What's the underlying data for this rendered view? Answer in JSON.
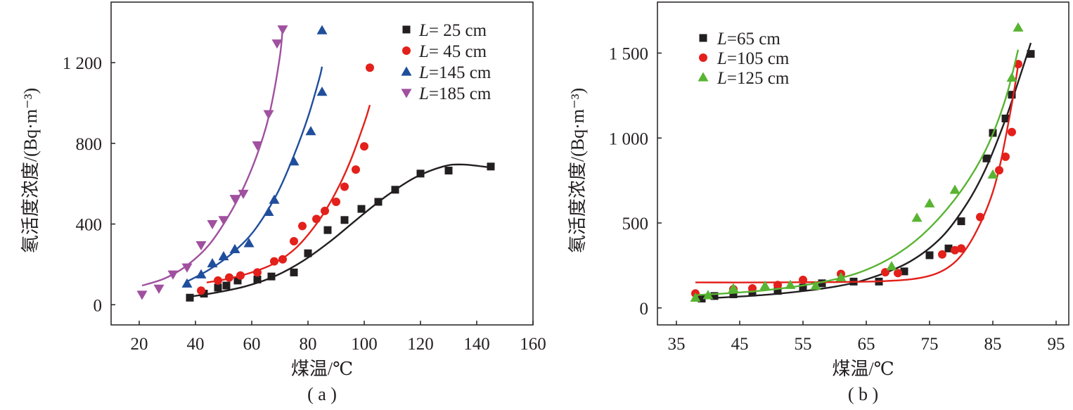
{
  "chart_data": [
    {
      "panel": "a",
      "type": "scatter",
      "caption": "( a )",
      "xlabel": "煤温/℃",
      "ylabel": "氡活度浓度/(Bq·m⁻³)",
      "xlim": [
        10,
        160
      ],
      "ylim": [
        -100,
        1500
      ],
      "xticks": [
        "20",
        "40",
        "60",
        "80",
        "100",
        "120",
        "140",
        "160"
      ],
      "xtick_values": [
        20,
        40,
        60,
        80,
        100,
        120,
        140,
        160
      ],
      "yticks": [
        "0",
        "400",
        "800",
        "1 200"
      ],
      "ytick_values": [
        0,
        400,
        800,
        1200
      ],
      "legend": {
        "position": "top-right"
      },
      "series": [
        {
          "name": "L= 25 cm",
          "color": "#231f20",
          "marker": "square",
          "x": [
            38,
            43,
            48,
            51,
            55,
            62,
            67,
            75,
            80,
            87,
            93,
            99,
            105,
            111,
            120,
            130,
            145
          ],
          "y": [
            35,
            55,
            85,
            95,
            120,
            125,
            140,
            160,
            255,
            370,
            420,
            475,
            510,
            570,
            650,
            665,
            685
          ],
          "fit": {
            "x": [
              38,
              48,
              58,
              68,
              78,
              88,
              98,
              108,
              118,
              128,
              135,
              145
            ],
            "y": [
              40,
              62,
              92,
              140,
              215,
              315,
              430,
              540,
              630,
              685,
              695,
              680
            ]
          }
        },
        {
          "name": "L= 45 cm",
          "color": "#e3201b",
          "marker": "circle",
          "x": [
            42,
            48,
            52,
            56,
            62,
            68,
            71,
            75,
            78,
            83,
            86,
            90,
            93,
            97,
            100,
            102
          ],
          "y": [
            70,
            120,
            135,
            145,
            160,
            215,
            225,
            315,
            390,
            425,
            465,
            510,
            585,
            670,
            785,
            1175
          ],
          "fit": {
            "x": [
              44,
              52,
              60,
              68,
              76,
              84,
              90,
              95,
              100,
              102
            ],
            "y": [
              110,
              130,
              160,
              205,
              285,
              420,
              560,
              710,
              900,
              990
            ]
          }
        },
        {
          "name": "L=145 cm",
          "color": "#1f4e9c",
          "marker": "triangle-up",
          "x": [
            37,
            42,
            46,
            50,
            54,
            59,
            66,
            68,
            75,
            81,
            85,
            85
          ],
          "y": [
            105,
            150,
            205,
            240,
            275,
            305,
            460,
            520,
            710,
            860,
            1055,
            1360
          ],
          "fit": {
            "x": [
              37,
              45,
              53,
              61,
              69,
              75,
              80,
              84,
              85
            ],
            "y": [
              115,
              175,
              255,
              370,
              550,
              740,
              930,
              1120,
              1180
            ]
          }
        },
        {
          "name": "L=185 cm",
          "color": "#a0509f",
          "marker": "triangle-down",
          "x": [
            21,
            27,
            32,
            37,
            42,
            46,
            50,
            54,
            57,
            62,
            66,
            69,
            71
          ],
          "y": [
            50,
            80,
            150,
            185,
            295,
            400,
            420,
            525,
            550,
            790,
            945,
            1295,
            1365
          ],
          "fit": {
            "x": [
              21,
              29,
              37,
              45,
              53,
              59,
              64,
              67,
              70,
              71
            ],
            "y": [
              95,
              130,
              195,
              300,
              470,
              640,
              830,
              990,
              1230,
              1370
            ]
          }
        }
      ]
    },
    {
      "panel": "b",
      "type": "scatter",
      "caption": "( b )",
      "xlabel": "煤温/℃",
      "ylabel": "氡活度浓度/(Bq·m⁻³)",
      "xlim": [
        32,
        97
      ],
      "ylim": [
        -100,
        1800
      ],
      "xticks": [
        "35",
        "45",
        "55",
        "65",
        "75",
        "85",
        "95"
      ],
      "xtick_values": [
        35,
        45,
        55,
        65,
        75,
        85,
        95
      ],
      "yticks": [
        "0",
        "500",
        "1 000",
        "1 500"
      ],
      "ytick_values": [
        0,
        500,
        1000,
        1500
      ],
      "legend": {
        "position": "top-left"
      },
      "series": [
        {
          "name": "L=65 cm",
          "color": "#231f20",
          "marker": "square",
          "x": [
            39,
            41,
            44,
            47,
            51,
            55,
            58,
            63,
            67,
            71,
            75,
            78,
            80,
            84,
            85,
            87,
            88,
            91
          ],
          "y": [
            55,
            70,
            80,
            90,
            100,
            120,
            145,
            155,
            155,
            215,
            310,
            350,
            510,
            880,
            1030,
            1115,
            1255,
            1495
          ],
          "fit": {
            "x": [
              39,
              50,
              60,
              66,
              72,
              77,
              81,
              84,
              87,
              89,
              91
            ],
            "y": [
              55,
              80,
              125,
              180,
              275,
              420,
              620,
              830,
              1110,
              1330,
              1560
            ]
          }
        },
        {
          "name": "L=105 cm",
          "color": "#e3201b",
          "marker": "circle",
          "x": [
            38,
            44,
            47,
            51,
            55,
            61,
            68,
            70,
            77,
            79,
            80,
            83,
            86,
            87,
            88,
            89
          ],
          "y": [
            85,
            110,
            115,
            135,
            165,
            200,
            210,
            205,
            315,
            340,
            350,
            535,
            810,
            890,
            1035,
            1435
          ],
          "fit": {
            "x": [
              38,
              50,
              60,
              68,
              74,
              78,
              81,
              84,
              86,
              88,
              89
            ],
            "y": [
              150,
              150,
              152,
              158,
              180,
              240,
              360,
              580,
              820,
              1200,
              1430
            ]
          }
        },
        {
          "name": "L=125 cm",
          "color": "#58b431",
          "marker": "triangle-up",
          "x": [
            38,
            40,
            44,
            49,
            53,
            57,
            61,
            69,
            73,
            75,
            79,
            85,
            88,
            89
          ],
          "y": [
            60,
            75,
            115,
            130,
            135,
            130,
            180,
            245,
            530,
            615,
            695,
            785,
            1355,
            1650
          ],
          "fit": {
            "x": [
              38,
              48,
              57,
              64,
              70,
              75,
              80,
              84,
              87,
              89
            ],
            "y": [
              75,
              100,
              145,
              210,
              320,
              470,
              690,
              940,
              1230,
              1520
            ]
          }
        }
      ]
    }
  ]
}
